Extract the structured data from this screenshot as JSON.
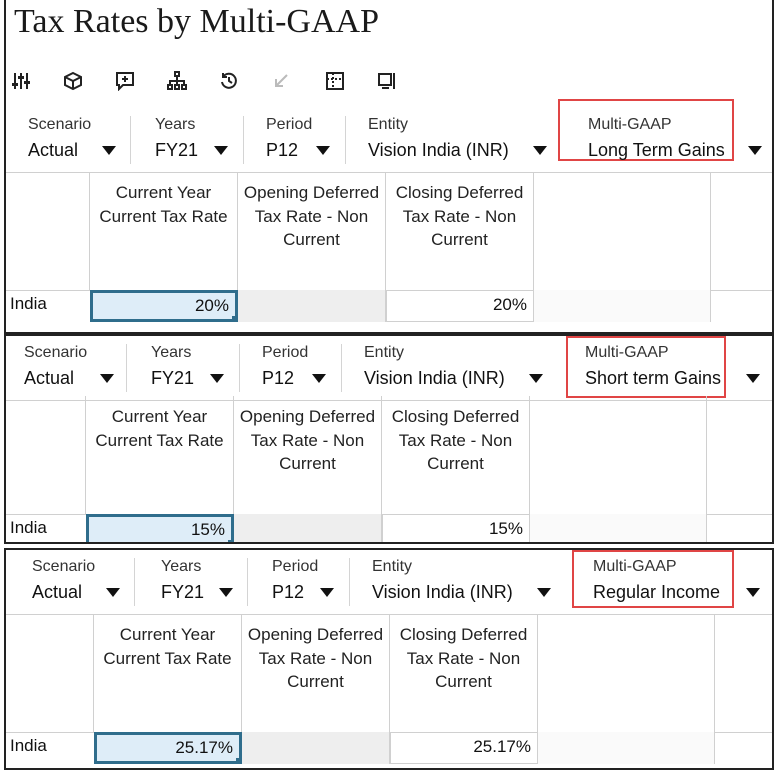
{
  "title": "Tax Rates by Multi-GAAP",
  "toolbar": {
    "icons": [
      "sliders-icon",
      "cube-icon",
      "add-comment-icon",
      "hierarchy-icon",
      "history-icon",
      "undo-icon",
      "grid-icon",
      "export-icon"
    ]
  },
  "pov_labels": {
    "scenario": "Scenario",
    "years": "Years",
    "period": "Period",
    "entity": "Entity",
    "multigaap": "Multi-GAAP"
  },
  "column_headers": {
    "col1": "Current Year Current Tax Rate",
    "col2": "Opening Deferred Tax Rate - Non Current",
    "col3": "Closing Deferred Tax Rate - Non Current"
  },
  "forms": [
    {
      "pov": {
        "scenario": "Actual",
        "years": "FY21",
        "period": "P12",
        "entity": "Vision India (INR)",
        "multigaap": "Long Term Gains"
      },
      "row_label": "India",
      "values": {
        "current_tax_rate": "20%",
        "opening_deferred": "",
        "closing_deferred": "20%"
      }
    },
    {
      "pov": {
        "scenario": "Actual",
        "years": "FY21",
        "period": "P12",
        "entity": "Vision India (INR)",
        "multigaap": "Short term Gains"
      },
      "row_label": "India",
      "values": {
        "current_tax_rate": "15%",
        "opening_deferred": "",
        "closing_deferred": "15%"
      }
    },
    {
      "pov": {
        "scenario": "Actual",
        "years": "FY21",
        "period": "P12",
        "entity": "Vision India (INR)",
        "multigaap": "Regular Income"
      },
      "row_label": "India",
      "values": {
        "current_tax_rate": "25.17%",
        "opening_deferred": "",
        "closing_deferred": "25.17%"
      }
    }
  ],
  "colors": {
    "highlight": "#e04545",
    "selected_cell": "#deedf8",
    "selected_border": "#2f6d8c"
  }
}
